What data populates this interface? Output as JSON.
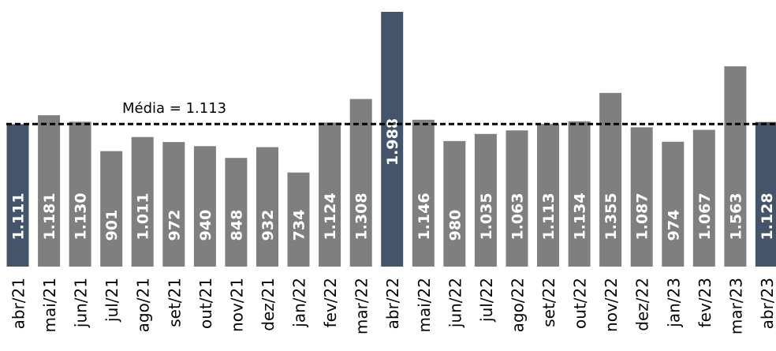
{
  "chart_data": {
    "type": "bar",
    "categories": [
      "abr/21",
      "mai/21",
      "jun/21",
      "jul/21",
      "ago/21",
      "set/21",
      "out/21",
      "nov/21",
      "dez/21",
      "jan/22",
      "fev/22",
      "mar/22",
      "abr/22",
      "mai/22",
      "jun/22",
      "jul/22",
      "ago/22",
      "set/22",
      "out/22",
      "nov/22",
      "dez/22",
      "jan/23",
      "fev/23",
      "mar/23",
      "abr/23"
    ],
    "values": [
      1111,
      1181,
      1130,
      901,
      1011,
      972,
      940,
      848,
      932,
      734,
      1124,
      1308,
      1988,
      1146,
      980,
      1035,
      1063,
      1113,
      1134,
      1355,
      1087,
      974,
      1067,
      1563,
      1128
    ],
    "value_labels": [
      "1.111",
      "1.181",
      "1.130",
      "901",
      "1.011",
      "972",
      "940",
      "848",
      "932",
      "734",
      "1.124",
      "1.308",
      "1.988",
      "1.146",
      "980",
      "1.035",
      "1.063",
      "1.113",
      "1.134",
      "1.355",
      "1.087",
      "974",
      "1.067",
      "1.563",
      "1.128"
    ],
    "highlighted": [
      true,
      false,
      false,
      false,
      false,
      false,
      false,
      false,
      false,
      false,
      false,
      false,
      true,
      false,
      false,
      false,
      false,
      false,
      false,
      false,
      false,
      false,
      false,
      false,
      true
    ],
    "average": 1113,
    "average_label": "Média = 1.113",
    "colors": {
      "highlight": "#44546a",
      "default": "#7f7f7f",
      "average_line": "#000000"
    },
    "ylim": [
      0,
      1988
    ],
    "grid": false,
    "legend": "none"
  }
}
